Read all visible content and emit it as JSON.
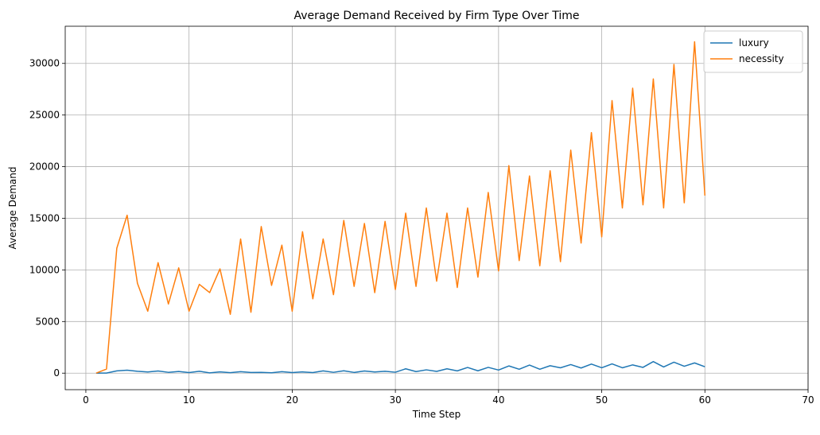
{
  "chart_data": {
    "type": "line",
    "title": "Average Demand Received by Firm Type Over Time",
    "xlabel": "Time Step",
    "ylabel": "Average Demand",
    "xlim": [
      -2,
      70
    ],
    "ylim": [
      -1600,
      33600
    ],
    "xticks": [
      0,
      10,
      20,
      30,
      40,
      50,
      60,
      70
    ],
    "yticks": [
      0,
      5000,
      10000,
      15000,
      20000,
      25000,
      30000
    ],
    "grid": true,
    "legend_position": "top-right",
    "x": [
      1,
      2,
      3,
      4,
      5,
      6,
      7,
      8,
      9,
      10,
      11,
      12,
      13,
      14,
      15,
      16,
      17,
      18,
      19,
      20,
      21,
      22,
      23,
      24,
      25,
      26,
      27,
      28,
      29,
      30,
      31,
      32,
      33,
      34,
      35,
      36,
      37,
      38,
      39,
      40,
      41,
      42,
      43,
      44,
      45,
      46,
      47,
      48,
      49,
      50,
      51,
      52,
      53,
      54,
      55,
      56,
      57,
      58,
      59,
      60
    ],
    "series": [
      {
        "name": "luxury",
        "color": "#1f77b4",
        "values": [
          0,
          10,
          220,
          290,
          180,
          110,
          210,
          80,
          160,
          60,
          180,
          30,
          120,
          50,
          140,
          70,
          80,
          40,
          140,
          60,
          120,
          60,
          220,
          80,
          230,
          70,
          210,
          110,
          180,
          90,
          420,
          150,
          320,
          170,
          420,
          220,
          550,
          230,
          560,
          300,
          700,
          380,
          780,
          380,
          720,
          520,
          830,
          500,
          880,
          520,
          900,
          520,
          800,
          560,
          1120,
          600,
          1060,
          670,
          990,
          620
        ]
      },
      {
        "name": "necessity",
        "color": "#ff7f0e",
        "values": [
          0,
          400,
          12100,
          15300,
          8700,
          6000,
          10700,
          6700,
          10200,
          6000,
          8600,
          7800,
          10100,
          5700,
          13000,
          5900,
          14200,
          8500,
          12400,
          6000,
          13700,
          7200,
          13000,
          7600,
          14800,
          8400,
          14500,
          7800,
          14700,
          8100,
          15500,
          8400,
          16000,
          8900,
          15500,
          8300,
          16000,
          9300,
          17500,
          9900,
          20100,
          10900,
          19100,
          10400,
          19600,
          10800,
          21600,
          12600,
          23300,
          13200,
          26400,
          16000,
          27600,
          16300,
          28500,
          16000,
          29900,
          16500,
          32100,
          17200
        ]
      }
    ]
  }
}
